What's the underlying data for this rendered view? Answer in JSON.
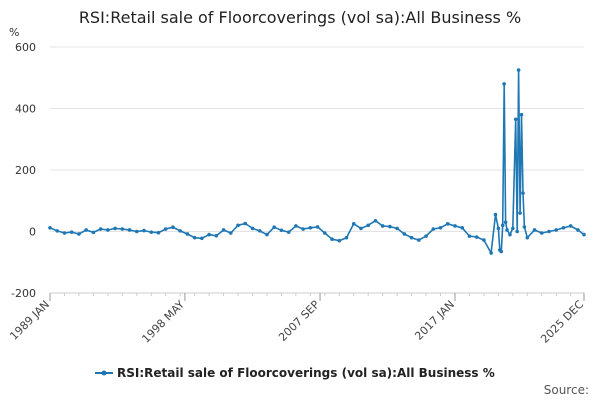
{
  "chart_data": {
    "type": "line",
    "title": "RSI:Retail sale of Floorcoverings (vol sa):All Business %",
    "ylabel": "%",
    "xlabel": "",
    "ylim": [
      -200,
      600
    ],
    "yticks": [
      -200,
      0,
      200,
      400,
      600
    ],
    "xlim": [
      1989.0,
      2025.92
    ],
    "xticks": [
      {
        "label": "1989 JAN",
        "value": 1989.0
      },
      {
        "label": "1998 MAY",
        "value": 1998.33
      },
      {
        "label": "2007 SEP",
        "value": 2007.67
      },
      {
        "label": "2017 JAN",
        "value": 2017.0
      },
      {
        "label": "2025 DEC",
        "value": 2025.92
      }
    ],
    "grid": true,
    "legend": "bottom",
    "source_label": "Source:",
    "series": [
      {
        "name": "RSI:Retail sale of Floorcoverings (vol sa):All Business %",
        "color": "#1f77b4",
        "x": [
          1989.0,
          1989.5,
          1990.0,
          1990.5,
          1991.0,
          1991.5,
          1992.0,
          1992.5,
          1993.0,
          1993.5,
          1994.0,
          1994.5,
          1995.0,
          1995.5,
          1996.0,
          1996.5,
          1997.0,
          1997.5,
          1998.0,
          1998.5,
          1999.0,
          1999.5,
          2000.0,
          2000.5,
          2001.0,
          2001.5,
          2002.0,
          2002.5,
          2003.0,
          2003.5,
          2004.0,
          2004.5,
          2005.0,
          2005.5,
          2006.0,
          2006.5,
          2007.0,
          2007.5,
          2008.0,
          2008.5,
          2009.0,
          2009.5,
          2010.0,
          2010.5,
          2011.0,
          2011.5,
          2012.0,
          2012.5,
          2013.0,
          2013.5,
          2014.0,
          2014.5,
          2015.0,
          2015.5,
          2016.0,
          2016.5,
          2017.0,
          2017.5,
          2018.0,
          2018.5,
          2019.0,
          2019.5,
          2019.8,
          2020.0,
          2020.1,
          2020.2,
          2020.3,
          2020.4,
          2020.5,
          2020.6,
          2020.8,
          2021.0,
          2021.2,
          2021.3,
          2021.4,
          2021.5,
          2021.6,
          2021.7,
          2021.8,
          2022.0,
          2022.5,
          2023.0,
          2023.5,
          2024.0,
          2024.5,
          2025.0,
          2025.5,
          2025.92
        ],
        "y": [
          12,
          2,
          -5,
          -2,
          -8,
          5,
          -3,
          8,
          5,
          10,
          8,
          5,
          0,
          3,
          -2,
          -4,
          8,
          14,
          2,
          -8,
          -20,
          -22,
          -10,
          -14,
          5,
          -5,
          20,
          26,
          10,
          2,
          -10,
          14,
          4,
          -2,
          18,
          8,
          12,
          15,
          -5,
          -25,
          -30,
          -20,
          25,
          10,
          20,
          35,
          18,
          16,
          10,
          -8,
          -20,
          -28,
          -15,
          8,
          12,
          25,
          18,
          12,
          -15,
          -18,
          -28,
          -70,
          55,
          10,
          -60,
          -65,
          20,
          480,
          30,
          5,
          -10,
          10,
          365,
          0,
          525,
          60,
          380,
          125,
          15,
          -20,
          5,
          -5,
          0,
          5,
          12,
          18,
          5,
          -10
        ]
      }
    ]
  }
}
